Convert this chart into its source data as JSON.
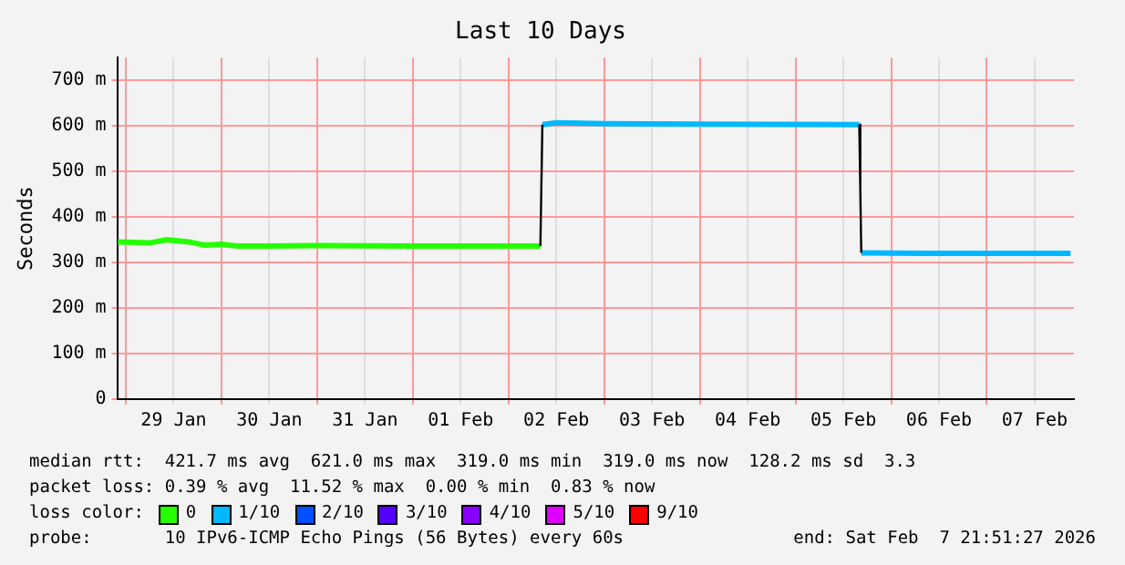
{
  "chart_data": {
    "type": "line",
    "title": "Last 10 Days",
    "ylabel": "Seconds",
    "legend_title": "loss color:",
    "legend": "bottom",
    "grid": true,
    "marker": "none",
    "x": [
      "2026-01-28T22:00",
      "2026-01-29T06:00",
      "2026-01-29T10:00",
      "2026-01-29T16:00",
      "2026-01-29T20:00",
      "2026-01-30T00:00",
      "2026-01-30T04:00",
      "2026-01-30T12:00",
      "2026-01-31T00:00",
      "2026-02-01T00:00",
      "2026-02-02T08:00",
      "2026-02-02T08:30",
      "2026-02-02T12:00",
      "2026-02-03T00:00",
      "2026-02-04T00:00",
      "2026-02-05T16:00",
      "2026-02-05T16:15",
      "2026-02-05T16:30",
      "2026-02-06T12:00",
      "2026-02-07T21:00"
    ],
    "xlim": [
      "2026-01-28T21:51",
      "2026-02-07T21:51"
    ],
    "xticks": [
      {
        "value": "2026-01-29T00:00",
        "label": null
      },
      {
        "value": "2026-01-29T12:00",
        "label": "29 Jan"
      },
      {
        "value": "2026-01-30T00:00",
        "label": null
      },
      {
        "value": "2026-01-30T12:00",
        "label": "30 Jan"
      },
      {
        "value": "2026-01-31T00:00",
        "label": null
      },
      {
        "value": "2026-01-31T12:00",
        "label": "31 Jan"
      },
      {
        "value": "2026-02-01T00:00",
        "label": null
      },
      {
        "value": "2026-02-01T12:00",
        "label": "01 Feb"
      },
      {
        "value": "2026-02-02T00:00",
        "label": null
      },
      {
        "value": "2026-02-02T12:00",
        "label": "02 Feb"
      },
      {
        "value": "2026-02-03T00:00",
        "label": null
      },
      {
        "value": "2026-02-03T12:00",
        "label": "03 Feb"
      },
      {
        "value": "2026-02-04T00:00",
        "label": null
      },
      {
        "value": "2026-02-04T12:00",
        "label": "04 Feb"
      },
      {
        "value": "2026-02-05T00:00",
        "label": null
      },
      {
        "value": "2026-02-05T12:00",
        "label": "05 Feb"
      },
      {
        "value": "2026-02-06T00:00",
        "label": null
      },
      {
        "value": "2026-02-06T12:00",
        "label": "06 Feb"
      },
      {
        "value": "2026-02-07T00:00",
        "label": null
      },
      {
        "value": "2026-02-07T12:00",
        "label": "07 Feb"
      }
    ],
    "ylim": [
      0,
      750
    ],
    "yticks": [
      0,
      {
        "value": 100,
        "label": "100 m"
      },
      {
        "value": 200,
        "label": "200 m"
      },
      {
        "value": 300,
        "label": "300 m"
      },
      {
        "value": 400,
        "label": "400 m"
      },
      {
        "value": 500,
        "label": "500 m"
      },
      {
        "value": 600,
        "label": "600 m"
      },
      {
        "value": 700,
        "label": "700 m"
      }
    ],
    "series": [
      {
        "color": "#000000",
        "values": [
          null,
          null,
          null,
          null,
          null,
          null,
          null,
          null,
          null,
          null,
          336,
          603,
          null,
          null,
          null,
          603,
          462,
          321,
          null,
          null
        ]
      },
      {
        "name": "0",
        "color": "#26ff00",
        "values": [
          345,
          343,
          350,
          345,
          338,
          340,
          336,
          336,
          337,
          336,
          336,
          null,
          null,
          null,
          null,
          null,
          null,
          null,
          null,
          null
        ]
      },
      {
        "name": "1/10",
        "color": "#00b8ff",
        "values": [
          null,
          null,
          null,
          null,
          null,
          null,
          null,
          null,
          null,
          null,
          null,
          603,
          607,
          605,
          604,
          603,
          null,
          321,
          320,
          320
        ]
      },
      {
        "name": "2/10",
        "color": "#0050ff",
        "values": [
          null,
          null,
          null,
          null,
          null,
          null,
          null,
          null,
          null,
          null,
          null,
          null,
          null,
          null,
          null,
          null,
          null,
          null,
          null,
          null
        ]
      },
      {
        "name": "3/10",
        "color": "#5500ff",
        "values": [
          null,
          null,
          null,
          null,
          null,
          null,
          null,
          null,
          null,
          null,
          null,
          null,
          null,
          null,
          null,
          null,
          null,
          null,
          null,
          null
        ]
      },
      {
        "name": "4/10",
        "color": "#8800ff",
        "values": [
          null,
          null,
          null,
          null,
          null,
          null,
          null,
          null,
          null,
          null,
          null,
          null,
          null,
          null,
          null,
          null,
          null,
          null,
          null,
          null
        ]
      },
      {
        "name": "5/10",
        "color": "#dd00ff",
        "values": [
          null,
          null,
          null,
          null,
          null,
          null,
          null,
          null,
          null,
          null,
          null,
          null,
          null,
          null,
          null,
          null,
          null,
          null,
          null,
          null
        ]
      },
      {
        "name": "9/10",
        "color": "#ff0000",
        "values": [
          null,
          null,
          null,
          null,
          null,
          null,
          null,
          null,
          null,
          null,
          null,
          null,
          null,
          null,
          null,
          null,
          null,
          null,
          null,
          null
        ]
      }
    ],
    "annotations": [
      "median rtt:  421.7 ms avg  621.0 ms max  319.0 ms min  319.0 ms now  128.2 ms sd  3.3",
      "packet loss: 0.39 % avg  11.52 % max  0.00 % min  0.83 % now",
      "probe:       10 IPv6-ICMP Echo Pings (56 Bytes) every 60s",
      "end: Sat Feb  7 21:51:27 2026"
    ]
  }
}
